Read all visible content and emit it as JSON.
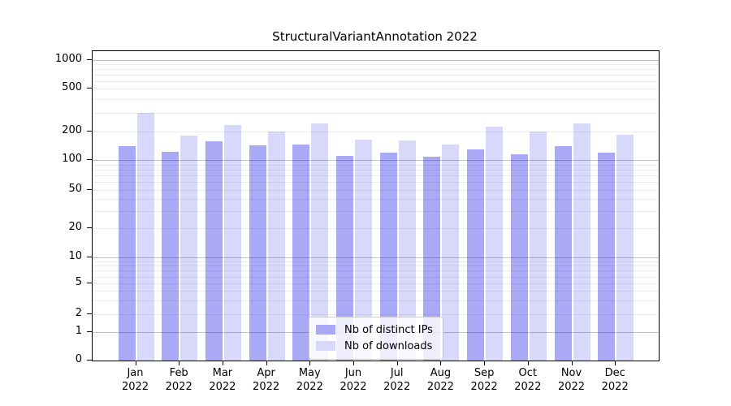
{
  "chart_data": {
    "type": "bar",
    "title": "StructuralVariantAnnotation 2022",
    "year": "2022",
    "categories": [
      "Jan 2022",
      "Feb 2022",
      "Mar 2022",
      "Apr 2022",
      "May 2022",
      "Jun 2022",
      "Jul 2022",
      "Aug 2022",
      "Sep 2022",
      "Oct 2022",
      "Nov 2022",
      "Dec 2022"
    ],
    "series": [
      {
        "name": "Nb of distinct IPs",
        "color": "#a9a9f5",
        "values": [
          140,
          123,
          156,
          142,
          146,
          111,
          121,
          109,
          130,
          115,
          140,
          120
        ]
      },
      {
        "name": "Nb of downloads",
        "color": "#d8d8fa",
        "values": [
          296,
          181,
          230,
          199,
          236,
          165,
          162,
          146,
          221,
          198,
          238,
          184
        ]
      }
    ],
    "xlabel": "",
    "ylabel": "",
    "y_ticks": [
      0,
      1,
      2,
      5,
      10,
      20,
      50,
      100,
      200,
      500,
      1000
    ],
    "y_tick_labels": [
      "0",
      "1",
      "2",
      "5",
      "10",
      "20",
      "50",
      "100",
      "200",
      "500",
      "1000"
    ],
    "yscale": "symlog",
    "ylim": [
      0,
      1300
    ],
    "grid": "horizontal major and minor log gridlines, drawn over bars",
    "legend_position": "lower center",
    "colors": {
      "axis": "#000000",
      "major_grid": "#c3c3c3",
      "minor_grid": "#ececec",
      "background": "#ffffff"
    }
  }
}
